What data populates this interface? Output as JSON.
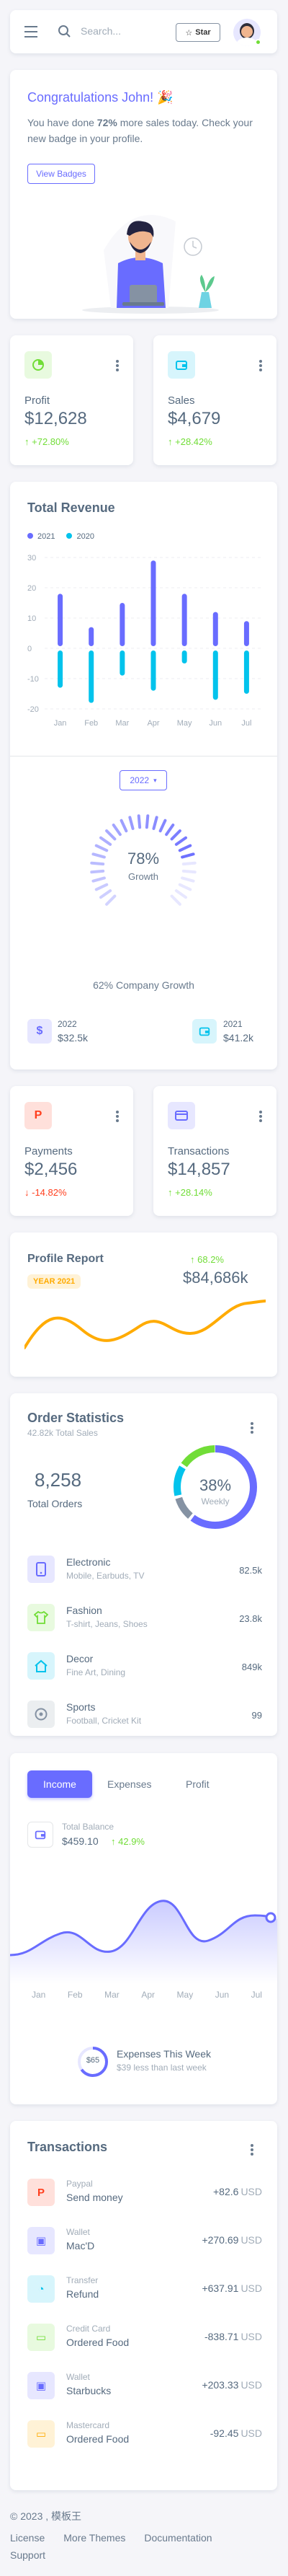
{
  "navbar": {
    "search_placeholder": "Search...",
    "star_label": "Star"
  },
  "welcome": {
    "title": "Congratulations John! 🎉",
    "text_before": "You have done ",
    "text_highlight": "72%",
    "text_after": " more sales today. Check your new badge in your profile.",
    "button": "View Badges"
  },
  "profit": {
    "label": "Profit",
    "value": "$12,628",
    "change": "+72.80%"
  },
  "sales": {
    "label": "Sales",
    "value": "$4,679",
    "change": "+28.42%"
  },
  "revenue": {
    "title": "Total Revenue",
    "legend": [
      "2021",
      "2020"
    ],
    "year_button": "2022",
    "growth_value": "78%",
    "growth_label": "Growth",
    "company_growth": "62% Company Growth",
    "stat1_year": "2022",
    "stat1_value": "$32.5k",
    "stat2_year": "2021",
    "stat2_value": "$41.2k"
  },
  "chart_data": {
    "type": "bar",
    "categories": [
      "Jan",
      "Feb",
      "Mar",
      "Apr",
      "May",
      "Jun",
      "Jul"
    ],
    "y_ticks": [
      "30",
      "20",
      "10",
      "0",
      "-10",
      "-20"
    ],
    "ylim": [
      -20,
      30
    ],
    "series": [
      {
        "name": "2021",
        "values": [
          18,
          7,
          15,
          29,
          18,
          12,
          9
        ]
      },
      {
        "name": "2020",
        "values": [
          -13,
          -18,
          -9,
          -14,
          -5,
          -17,
          -15
        ]
      }
    ]
  },
  "payments": {
    "label": "Payments",
    "value": "$2,456",
    "change": "-14.82%"
  },
  "transactions_card": {
    "label": "Transactions",
    "value": "$14,857",
    "change": "+28.14%"
  },
  "profile_report": {
    "title": "Profile Report",
    "badge": "YEAR 2021",
    "change": "68.2%",
    "value": "$84,686k"
  },
  "order_stats": {
    "title": "Order Statistics",
    "subtitle": "42.82k Total Sales",
    "total": "8,258",
    "total_label": "Total Orders",
    "donut_value": "38%",
    "donut_label": "Weekly",
    "items": [
      {
        "name": "Electronic",
        "desc": "Mobile, Earbuds, TV",
        "value": "82.5k"
      },
      {
        "name": "Fashion",
        "desc": "T-shirt, Jeans, Shoes",
        "value": "23.8k"
      },
      {
        "name": "Decor",
        "desc": "Fine Art, Dining",
        "value": "849k"
      },
      {
        "name": "Sports",
        "desc": "Football, Cricket Kit",
        "value": "99"
      }
    ]
  },
  "income": {
    "tabs": [
      "Income",
      "Expenses",
      "Profit"
    ],
    "balance_label": "Total Balance",
    "balance_value": "$459.10",
    "balance_change": "42.9%",
    "months": [
      "Jan",
      "Feb",
      "Mar",
      "Apr",
      "May",
      "Jun",
      "Jul"
    ],
    "expense_ring": "$65",
    "expense_title": "Expenses This Week",
    "expense_sub": "$39 less than last week"
  },
  "transactions": {
    "title": "Transactions",
    "currency": "USD",
    "items": [
      {
        "source": "Paypal",
        "name": "Send money",
        "amount": "+82.6"
      },
      {
        "source": "Wallet",
        "name": "Mac'D",
        "amount": "+270.69"
      },
      {
        "source": "Transfer",
        "name": "Refund",
        "amount": "+637.91"
      },
      {
        "source": "Credit Card",
        "name": "Ordered Food",
        "amount": "-838.71"
      },
      {
        "source": "Wallet",
        "name": "Starbucks",
        "amount": "+203.33"
      },
      {
        "source": "Mastercard",
        "name": "Ordered Food",
        "amount": "-92.45"
      }
    ]
  },
  "footer": {
    "copyright": "© 2023 , 模板王",
    "links": [
      "License",
      "More Themes",
      "Documentation",
      "Support"
    ]
  }
}
